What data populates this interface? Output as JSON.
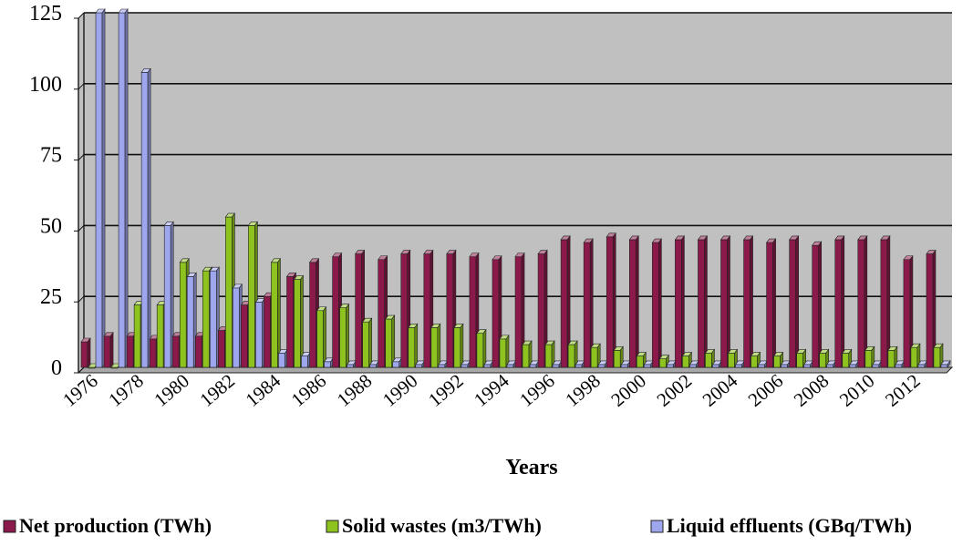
{
  "chart_data": {
    "type": "bar",
    "title": "",
    "xlabel": "Years",
    "ylabel": "",
    "ylim": [
      0,
      125
    ],
    "yticks": [
      "0",
      "25",
      "50",
      "75",
      "100",
      "125"
    ],
    "grid": true,
    "legend_position": "bottom",
    "categories": [
      "1976",
      "1977",
      "1978",
      "1979",
      "1980",
      "1981",
      "1982",
      "1983",
      "1984",
      "1985",
      "1986",
      "1987",
      "1988",
      "1989",
      "1990",
      "1991",
      "1992",
      "1993",
      "1994",
      "1995",
      "1996",
      "1997",
      "1998",
      "1999",
      "2000",
      "2001",
      "2002",
      "2003",
      "2004",
      "2005",
      "2006",
      "2007",
      "2008",
      "2009",
      "2010",
      "2011",
      "2012",
      "2013"
    ],
    "xtick_labels": [
      "1976",
      "1978",
      "1980",
      "1982",
      "1984",
      "1986",
      "1988",
      "1990",
      "1992",
      "1994",
      "1996",
      "1998",
      "2000",
      "2002",
      "2004",
      "2006",
      "2008",
      "2010",
      "2012"
    ],
    "series": [
      {
        "name": "Net production (TWh)",
        "color": "#8B1A4A",
        "values": [
          9,
          11,
          11,
          10,
          11,
          11,
          13,
          22,
          25,
          32,
          37,
          39,
          40,
          38,
          40,
          40,
          40,
          39,
          38,
          39,
          40,
          45,
          44,
          46,
          45,
          44,
          45,
          45,
          45,
          45,
          44,
          45,
          43,
          45,
          45,
          45,
          38,
          40
        ]
      },
      {
        "name": "Solid wastes (m3/TWh)",
        "color": "#8DC21F",
        "values": [
          0,
          0,
          22,
          22,
          37,
          34,
          53,
          50,
          37,
          31,
          20,
          21,
          16,
          17,
          14,
          14,
          14,
          12,
          10,
          8,
          8,
          8,
          7,
          6,
          4,
          3,
          4,
          5,
          5,
          4,
          4,
          5,
          5,
          5,
          6,
          6,
          7,
          7
        ]
      },
      {
        "name": "Liquid effluents (GBq/TWh)",
        "color": "#9EA6EE",
        "values": [
          125,
          125,
          104,
          50,
          32,
          34,
          28,
          23,
          5,
          4,
          2,
          1,
          1,
          2,
          1,
          1,
          1,
          1,
          1,
          1,
          1,
          1,
          1,
          1,
          1,
          1,
          1,
          1,
          1,
          1,
          1,
          1,
          1,
          1,
          1,
          1,
          1,
          1
        ]
      }
    ]
  }
}
